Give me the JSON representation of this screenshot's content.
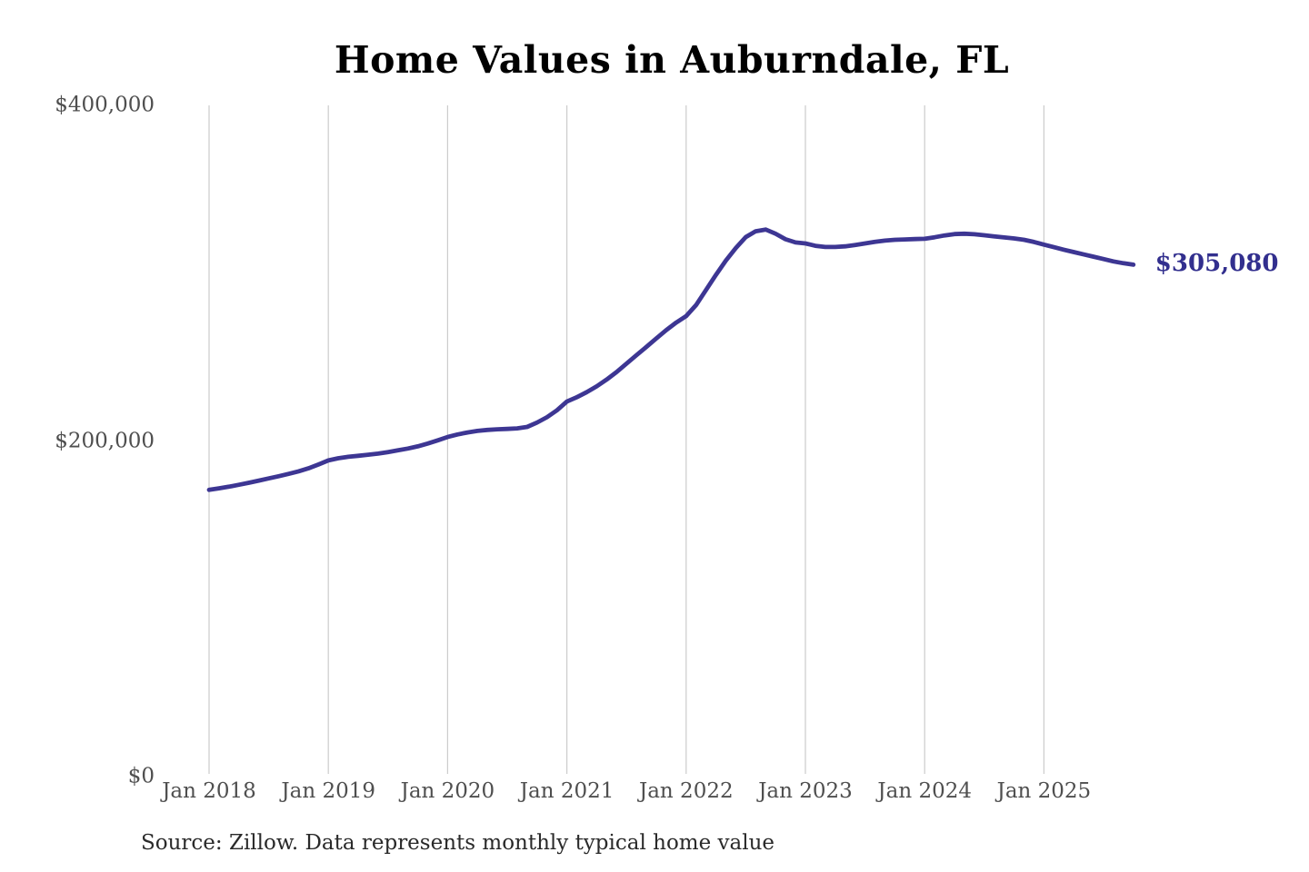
{
  "chart_data": {
    "type": "line",
    "title": "Home Values in Auburndale, FL",
    "source_note": "Source: Zillow. Data represents monthly typical home value",
    "xlabel": "",
    "ylabel": "",
    "ylim": [
      0,
      400000
    ],
    "grid": "vertical-year-lines",
    "legend": "none",
    "colors": {
      "line": "#3d3693",
      "end_label": "#322f8e",
      "grid": "#cccccc",
      "axis_text": "#4f4f4f",
      "title": "#000000",
      "source_text": "#2a2a2a",
      "background": "#ffffff"
    },
    "x_ticks": [
      "Jan 2018",
      "Jan 2019",
      "Jan 2020",
      "Jan 2021",
      "Jan 2022",
      "Jan 2023",
      "Jan 2024",
      "Jan 2025"
    ],
    "y_ticks": [
      {
        "label": "$400,000",
        "value": 400000
      },
      {
        "label": "$200,000",
        "value": 200000
      },
      {
        "label": "$0",
        "value": 0
      }
    ],
    "end_label": {
      "text": "$305,080",
      "value": 305080
    },
    "series": [
      {
        "name": "Monthly typical home value",
        "months": [
          "2018-01",
          "2018-02",
          "2018-03",
          "2018-04",
          "2018-05",
          "2018-06",
          "2018-07",
          "2018-08",
          "2018-09",
          "2018-10",
          "2018-11",
          "2018-12",
          "2019-01",
          "2019-02",
          "2019-03",
          "2019-04",
          "2019-05",
          "2019-06",
          "2019-07",
          "2019-08",
          "2019-09",
          "2019-10",
          "2019-11",
          "2019-12",
          "2020-01",
          "2020-02",
          "2020-03",
          "2020-04",
          "2020-05",
          "2020-06",
          "2020-07",
          "2020-08",
          "2020-09",
          "2020-10",
          "2020-11",
          "2020-12",
          "2021-01",
          "2021-02",
          "2021-03",
          "2021-04",
          "2021-05",
          "2021-06",
          "2021-07",
          "2021-08",
          "2021-09",
          "2021-10",
          "2021-11",
          "2021-12",
          "2022-01",
          "2022-02",
          "2022-03",
          "2022-04",
          "2022-05",
          "2022-06",
          "2022-07",
          "2022-08",
          "2022-09",
          "2022-10",
          "2022-11",
          "2022-12",
          "2023-01",
          "2023-02",
          "2023-03",
          "2023-04",
          "2023-05",
          "2023-06",
          "2023-07",
          "2023-08",
          "2023-09",
          "2023-10",
          "2023-11",
          "2023-12",
          "2024-01",
          "2024-02",
          "2024-03",
          "2024-04",
          "2024-05",
          "2024-06",
          "2024-07",
          "2024-08",
          "2024-09",
          "2024-10",
          "2024-11",
          "2024-12",
          "2025-01",
          "2025-02",
          "2025-03",
          "2025-04",
          "2025-05",
          "2025-06",
          "2025-07",
          "2025-08",
          "2025-09",
          "2025-10"
        ],
        "values": [
          170900,
          171800,
          172800,
          173900,
          175100,
          176400,
          177700,
          179000,
          180400,
          181900,
          183700,
          186000,
          188400,
          189700,
          190600,
          191200,
          191800,
          192500,
          193400,
          194400,
          195500,
          196800,
          198500,
          200400,
          202400,
          203900,
          205100,
          206000,
          206600,
          207000,
          207200,
          207500,
          208400,
          211000,
          214200,
          218300,
          223500,
          226100,
          229100,
          232600,
          236600,
          241100,
          246100,
          251100,
          256100,
          261100,
          266100,
          270600,
          274400,
          281000,
          290000,
          299000,
          307500,
          315000,
          321500,
          325000,
          326000,
          323500,
          320200,
          318300,
          317700,
          316300,
          315600,
          315600,
          316000,
          316800,
          317700,
          318700,
          319400,
          319900,
          320100,
          320300,
          320500,
          321400,
          322500,
          323300,
          323500,
          323200,
          322600,
          321900,
          321300,
          320700,
          319900,
          318600,
          317000,
          315500,
          314000,
          312600,
          311200,
          309800,
          308400,
          307000,
          305900,
          305080
        ]
      }
    ]
  }
}
